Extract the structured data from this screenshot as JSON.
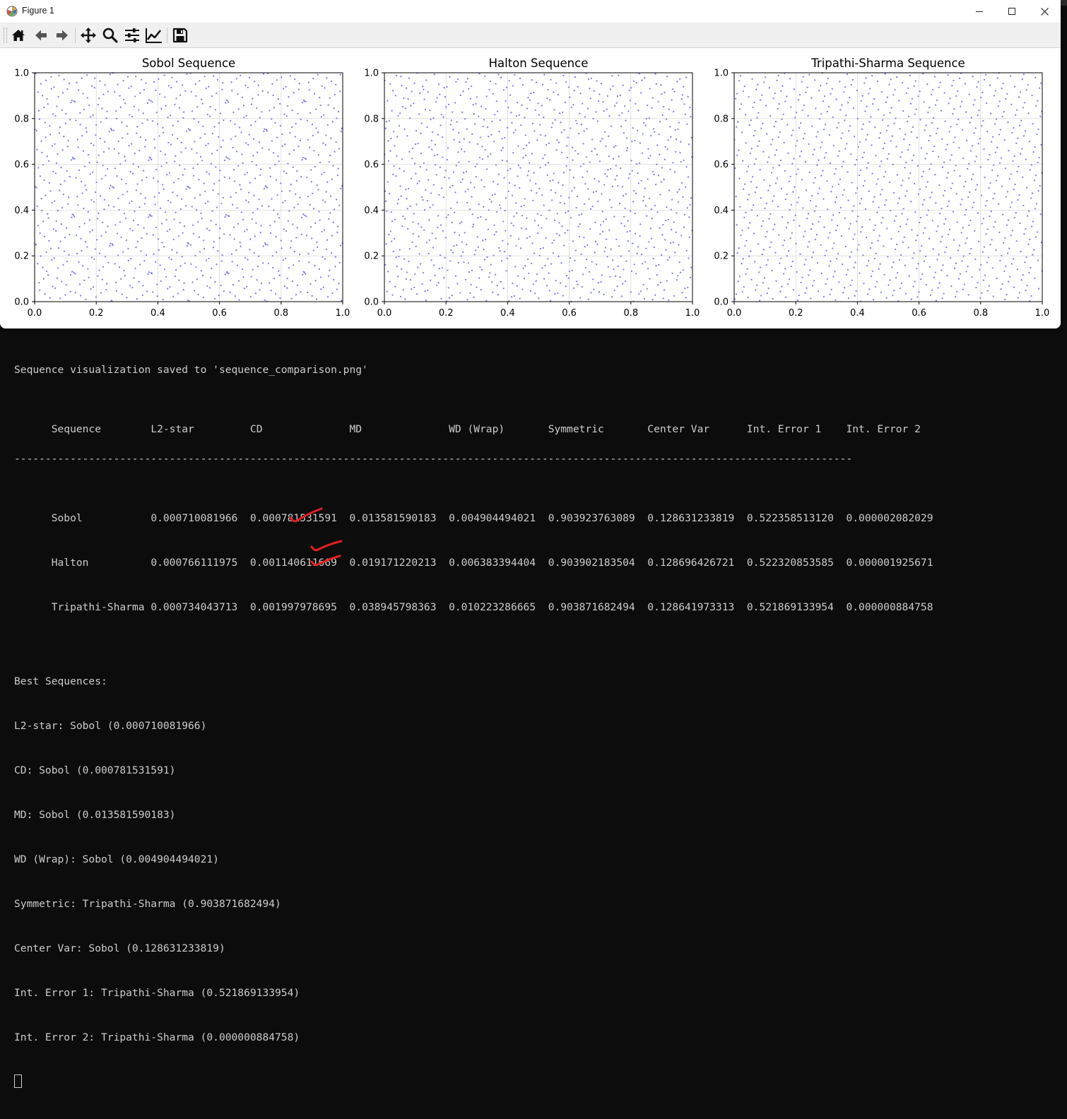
{
  "window": {
    "title": "Figure 1"
  },
  "toolbar": {
    "buttons": [
      {
        "name": "home",
        "icon": "home-icon"
      },
      {
        "name": "back",
        "icon": "arrow-left-icon"
      },
      {
        "name": "forward",
        "icon": "arrow-right-icon"
      },
      {
        "name": "pan",
        "icon": "move-icon"
      },
      {
        "name": "zoom",
        "icon": "zoom-icon"
      },
      {
        "name": "configure-subplots",
        "icon": "sliders-icon"
      },
      {
        "name": "edit-axis",
        "icon": "chart-line-icon"
      },
      {
        "name": "save",
        "icon": "floppy-disk-icon"
      }
    ]
  },
  "chart_data": [
    {
      "type": "scatter",
      "title": "Sobol Sequence",
      "xlim": [
        0,
        1
      ],
      "ylim": [
        0,
        1
      ],
      "xticks": [
        "0.0",
        "0.2",
        "0.4",
        "0.6",
        "0.8",
        "1.0"
      ],
      "yticks": [
        "0.0",
        "0.2",
        "0.4",
        "0.6",
        "0.8",
        "1.0"
      ],
      "grid": true,
      "color": "#8080e6",
      "n_points": 1024
    },
    {
      "type": "scatter",
      "title": "Halton Sequence",
      "xlim": [
        0,
        1
      ],
      "ylim": [
        0,
        1
      ],
      "xticks": [
        "0.0",
        "0.2",
        "0.4",
        "0.6",
        "0.8",
        "1.0"
      ],
      "yticks": [
        "0.0",
        "0.2",
        "0.4",
        "0.6",
        "0.8",
        "1.0"
      ],
      "grid": true,
      "color": "#8080e6",
      "n_points": 1024
    },
    {
      "type": "scatter",
      "title": "Tripathi-Sharma Sequence",
      "xlim": [
        0,
        1
      ],
      "ylim": [
        0,
        1
      ],
      "xticks": [
        "0.0",
        "0.2",
        "0.4",
        "0.6",
        "0.8",
        "1.0"
      ],
      "yticks": [
        "0.0",
        "0.2",
        "0.4",
        "0.6",
        "0.8",
        "1.0"
      ],
      "grid": true,
      "color": "#8080e6",
      "n_points": 1024
    }
  ],
  "terminal": {
    "saved_message": "Sequence visualization saved to 'sequence_comparison.png'",
    "header": [
      "Sequence",
      "L2-star",
      "CD",
      "MD",
      "WD (Wrap)",
      "Symmetric",
      "Center Var",
      "Int. Error 1",
      "Int. Error 2"
    ],
    "rows": [
      [
        "Sobol",
        "0.000710081966",
        "0.000781531591",
        "0.013581590183",
        "0.004904494021",
        "0.903923763089",
        "0.128631233819",
        "0.522358513120",
        "0.000002082029"
      ],
      [
        "Halton",
        "0.000766111975",
        "0.001140611669",
        "0.019171220213",
        "0.006383394404",
        "0.903902183504",
        "0.128696426721",
        "0.522320853585",
        "0.000001925671"
      ],
      [
        "Tripathi-Sharma",
        "0.000734043713",
        "0.001997978695",
        "0.038945798363",
        "0.010223286665",
        "0.903871682494",
        "0.128641973313",
        "0.521869133954",
        "0.000000884758"
      ]
    ],
    "best_heading": "Best Sequences:",
    "best": [
      "L2-star: Sobol (0.000710081966)",
      "CD: Sobol (0.000781531591)",
      "MD: Sobol (0.013581590183)",
      "WD (Wrap): Sobol (0.004904494021)",
      "Symmetric: Tripathi-Sharma (0.903871682494)",
      "Center Var: Sobol (0.128631233819)",
      "Int. Error 1: Tripathi-Sharma (0.521869133954)",
      "Int. Error 2: Tripathi-Sharma (0.000000884758)"
    ]
  },
  "annotation_color": "#e02020"
}
